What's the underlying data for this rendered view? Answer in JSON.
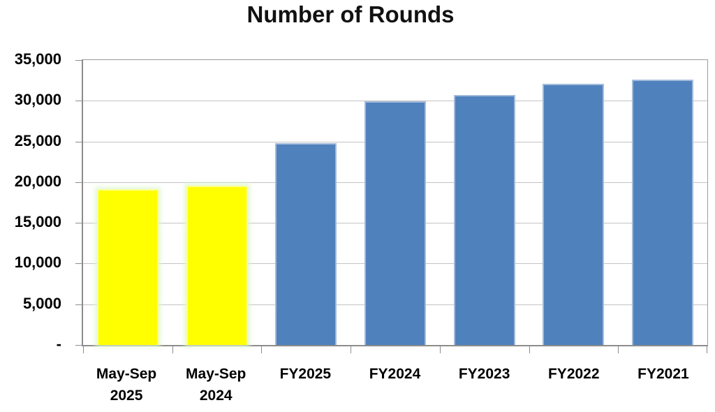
{
  "chart_data": {
    "type": "bar",
    "title": "Number of Rounds",
    "categories": [
      "May-Sep\n2025",
      "May-Sep\n2024",
      "FY2025",
      "FY2024",
      "FY2023",
      "FY2022",
      "FY2021"
    ],
    "values": [
      19100,
      19600,
      24800,
      29900,
      30700,
      32100,
      32600
    ],
    "xlabel": "",
    "ylabel": "",
    "ylim": [
      0,
      35000
    ],
    "ytick_interval": 5000,
    "ytick_labels": [
      "35,000",
      "30,000",
      "25,000",
      "20,000",
      "15,000",
      "10,000",
      "5,000",
      "-"
    ],
    "grid": true,
    "legend": "none",
    "bar_styles": [
      {
        "fill": "#FFFF00",
        "border": "#FDFF8A",
        "glow": true
      },
      {
        "fill": "#FFFF00",
        "border": "#FDFF8A",
        "glow": true
      },
      {
        "fill": "#4F81BD",
        "border": "#A3BBDB",
        "glow": false
      },
      {
        "fill": "#4F81BD",
        "border": "#A3BBDB",
        "glow": false
      },
      {
        "fill": "#4F81BD",
        "border": "#A3BBDB",
        "glow": false
      },
      {
        "fill": "#4F81BD",
        "border": "#A3BBDB",
        "glow": false
      },
      {
        "fill": "#4F81BD",
        "border": "#A3BBDB",
        "glow": false
      }
    ],
    "colors": {
      "yellow_bar": "#FFFF00",
      "blue_bar": "#4F81BD",
      "gridline": "#C3C3C3",
      "axis": "#8C8C8C",
      "title_text": "#111111",
      "background": "#FFFFFF"
    }
  }
}
